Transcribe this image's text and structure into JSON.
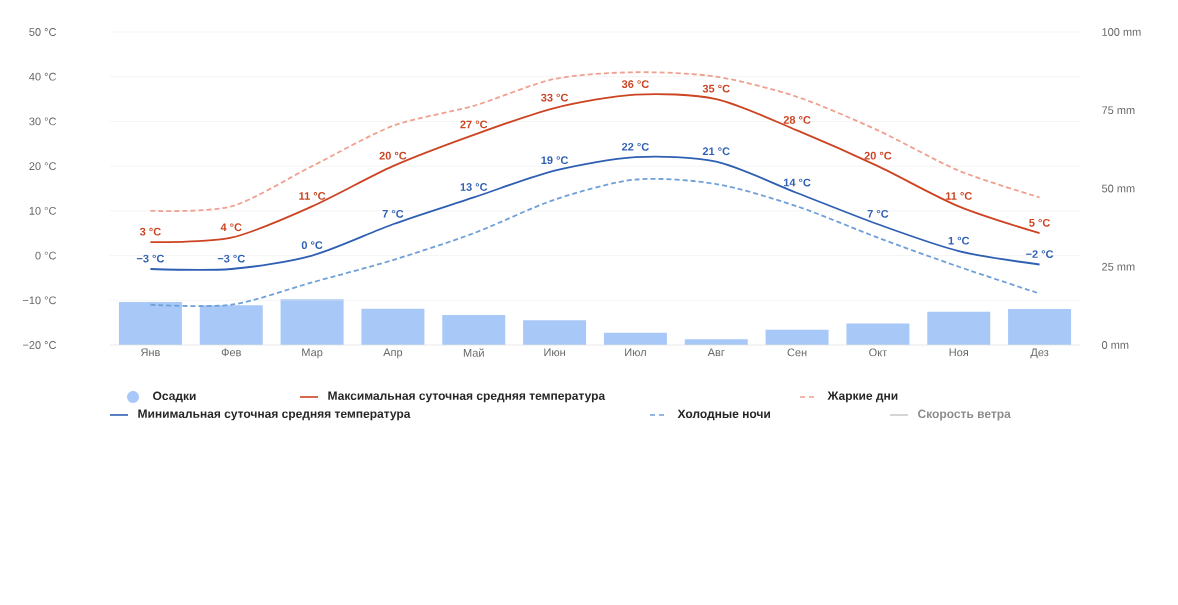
{
  "chart_data": {
    "type": "line",
    "categories": [
      "Янв",
      "Фев",
      "Мар",
      "Апр",
      "Май",
      "Июн",
      "Июл",
      "Авг",
      "Сен",
      "Окт",
      "Ноя",
      "Дез"
    ],
    "series": [
      {
        "name": "Осадки",
        "type": "bar",
        "axis": "y2",
        "color": "#a8c8f8",
        "values": [
          13.7,
          12.7,
          14.6,
          11.6,
          9.6,
          7.9,
          3.9,
          1.8,
          4.9,
          6.9,
          10.6,
          11.5
        ]
      },
      {
        "name": "Максимальная суточная средняя температура",
        "color": "#cc4422",
        "line_style": "solid",
        "values": [
          3,
          4,
          11,
          20,
          27,
          33,
          36,
          35,
          28,
          20,
          11,
          5
        ],
        "value_labels": [
          "3 °C",
          "4 °C",
          "11 °C",
          "20 °C",
          "27 °C",
          "33 °C",
          "36 °C",
          "35 °C",
          "28 °C",
          "20 °C",
          "11 °C",
          "5 °C"
        ]
      },
      {
        "name": "Жаркие дни",
        "color": "#f0a090",
        "line_style": "dashed",
        "values": [
          10,
          11,
          20,
          29,
          33.5,
          39.5,
          41,
          40,
          35.5,
          28,
          19,
          13
        ]
      },
      {
        "name": "Минимальная суточная средняя температура",
        "color": "#2f5fb3",
        "line_style": "solid",
        "values": [
          -3,
          -3,
          0,
          7,
          13,
          19,
          22,
          21,
          14,
          7,
          1,
          -2
        ],
        "value_labels": [
          "−3 °C",
          "−3 °C",
          "0 °C",
          "7 °C",
          "13 °C",
          "19 °C",
          "22 °C",
          "21 °C",
          "14 °C",
          "7 °C",
          "1 °C",
          "−2 °C"
        ]
      },
      {
        "name": "Холодные ночи",
        "color": "#70a0d8",
        "line_style": "dashed",
        "values": [
          -11,
          -11,
          -6,
          -1,
          5,
          12.5,
          17,
          16,
          11,
          4,
          -2.5,
          -8.5
        ]
      },
      {
        "name": "Скорость ветра",
        "color": "#cccccc",
        "line_style": "solid",
        "values": [
          null,
          null,
          null,
          null,
          null,
          null,
          null,
          null,
          null,
          null,
          null,
          null
        ]
      }
    ],
    "ylim": [
      -20,
      50
    ],
    "yticks": [
      {
        "value": -20,
        "label": "−20 °C"
      },
      {
        "value": -10,
        "label": "−10 °C"
      },
      {
        "value": 0,
        "label": "0 °C"
      },
      {
        "value": 10,
        "label": "10 °C"
      },
      {
        "value": 20,
        "label": "20 °C"
      },
      {
        "value": 30,
        "label": "30 °C"
      },
      {
        "value": 40,
        "label": "40 °C"
      },
      {
        "value": 50,
        "label": "50 °C"
      }
    ],
    "y2lim": [
      0,
      100
    ],
    "y2ticks": [
      {
        "value": 0,
        "label": "0 mm"
      },
      {
        "value": 25,
        "label": "25 mm"
      },
      {
        "value": 50,
        "label": "50 mm"
      },
      {
        "value": 75,
        "label": "75 mm"
      },
      {
        "value": 100,
        "label": "100 mm"
      }
    ],
    "grid": "y",
    "legend": "bottom",
    "marker": "none"
  }
}
